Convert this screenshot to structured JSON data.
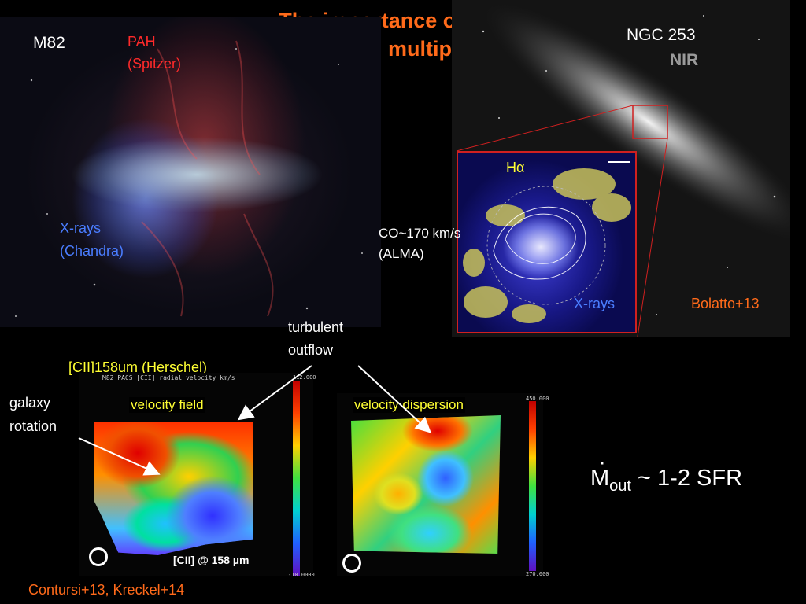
{
  "slide": {
    "title_line1": "The importance of tracing",
    "title_line2": "outflows in multiple phases"
  },
  "m82_panel": {
    "name": "M82",
    "pah_label_line1": "PAH",
    "pah_label_line2": "(Spitzer)",
    "xray_label_line1": "X-rays",
    "xray_label_line2": "(Chandra)"
  },
  "ngc253_panel": {
    "name": "NGC 253",
    "band": "NIR",
    "inset_halpha": "Hα",
    "inset_co_line1": "CO~170 km/s",
    "inset_co_line2": "(ALMA)",
    "inset_xrays": "X-rays",
    "citation": "Bolatto+13"
  },
  "cii_panel": {
    "header": "[CII]158um (Herschel)",
    "map1_title": "M82  PACS  [CII] radial velocity  km/s",
    "map1_caption": "velocity field",
    "map1_bar_top": "112.000",
    "map1_bar_bottom": "-10.0000",
    "map1_corner_label": "[CII] @  158 µm",
    "map2_caption": "velocity dispersion",
    "map2_bar_top": "450.000",
    "map2_bar_bottom": "270.000",
    "turbulent_line1": "turbulent",
    "turbulent_line2": "outflow",
    "galaxy_line1": "galaxy",
    "galaxy_line2": "rotation",
    "citation": "Contursi+13, Kreckel+14"
  },
  "equation": {
    "symbol": "M",
    "subscript": "out",
    "rest": " ~ 1-2 SFR"
  },
  "colors": {
    "title": "#ff6a1a",
    "pah": "#ff2a2a",
    "xray": "#4a7dff",
    "citation": "#ff6a1a",
    "yellow": "#ffff33",
    "gray": "#9a9a9a"
  }
}
